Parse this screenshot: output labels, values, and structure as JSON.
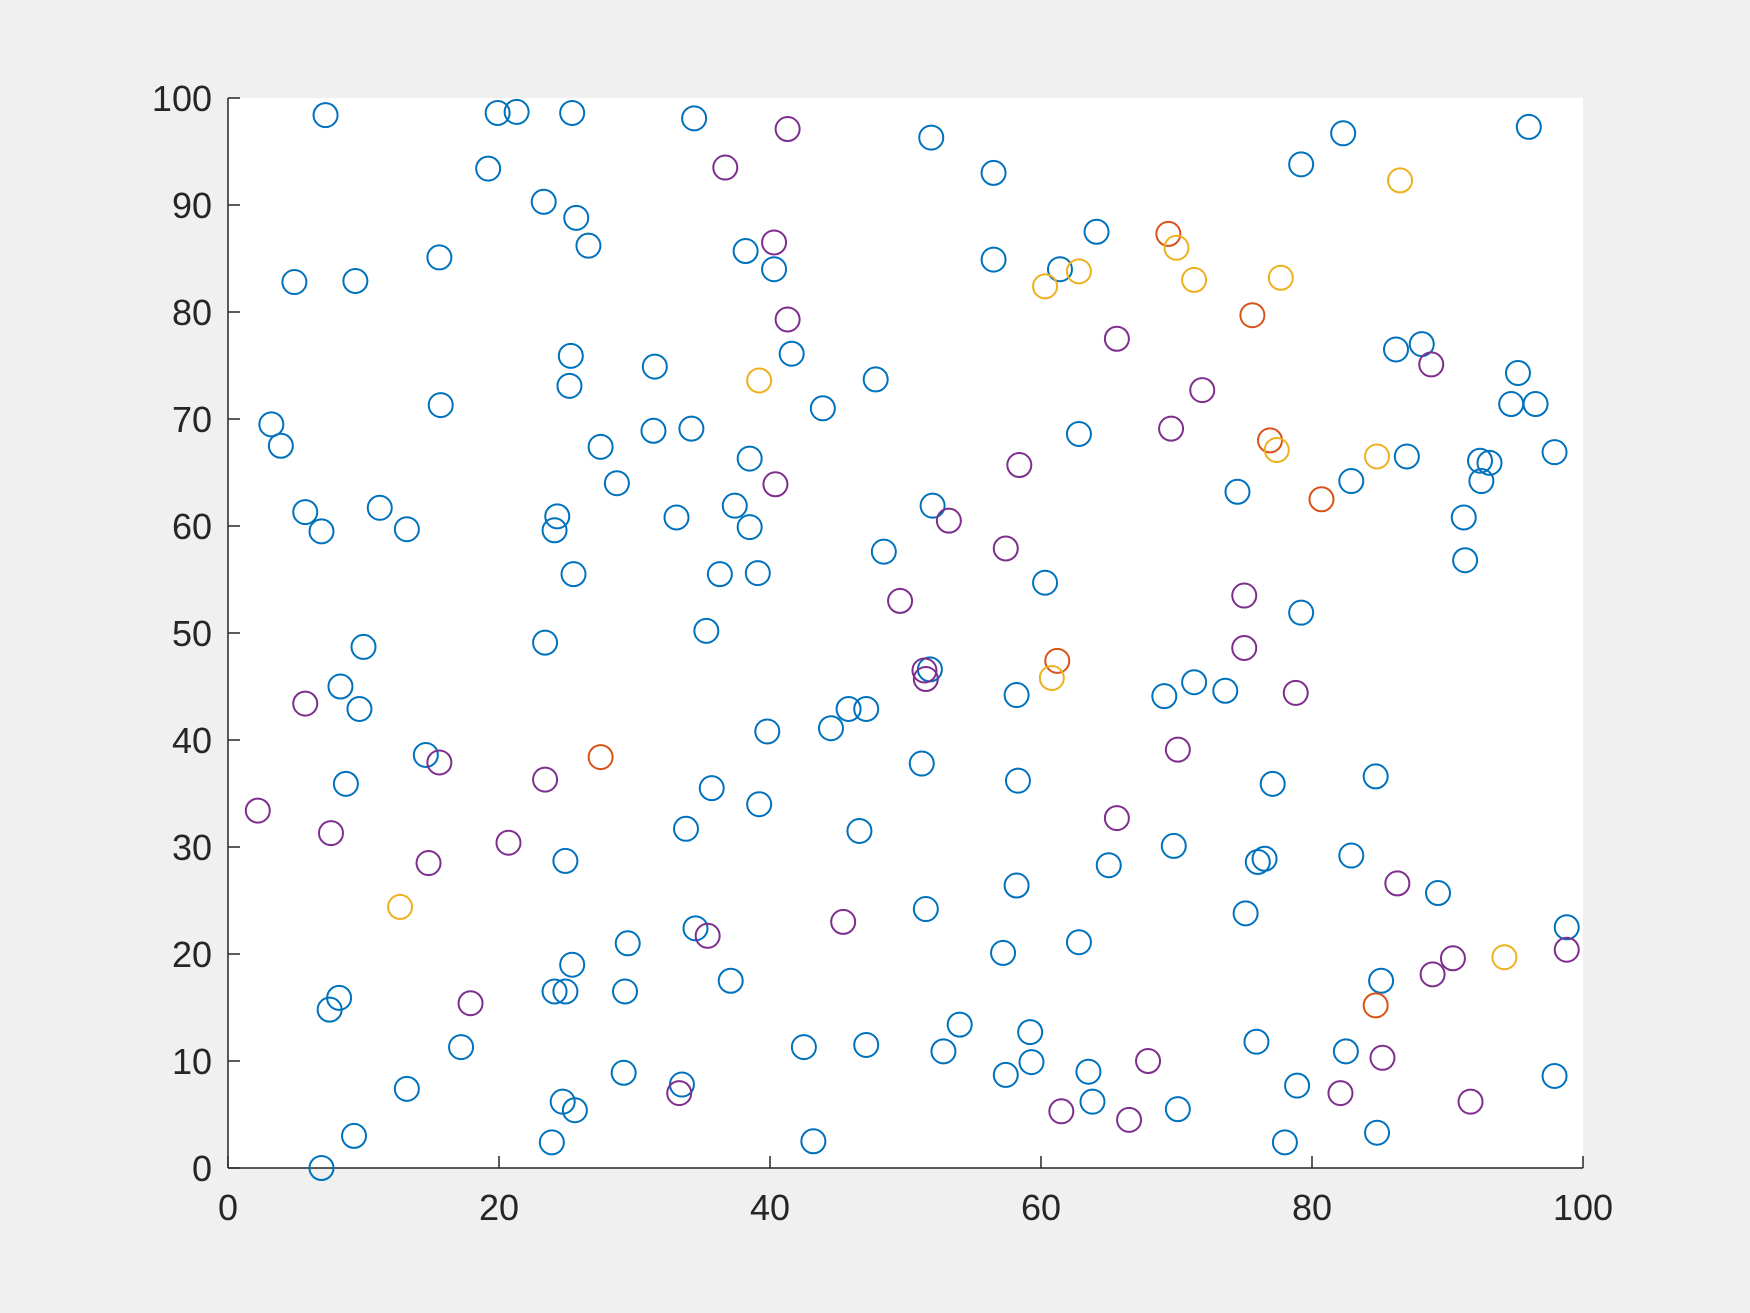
{
  "chart_data": {
    "type": "scatter",
    "xlim": [
      0,
      100
    ],
    "ylim": [
      0,
      100
    ],
    "xticks": [
      0,
      20,
      40,
      60,
      80,
      100
    ],
    "yticks": [
      0,
      10,
      20,
      30,
      40,
      50,
      60,
      70,
      80,
      90,
      100
    ],
    "series": [
      {
        "color": "#0072BD",
        "x": [
          7.2,
          19.9,
          21.3,
          25.4,
          34.4,
          51.9,
          82.3,
          96.0,
          19.2,
          56.5,
          79.2,
          23.3,
          25.7,
          26.6,
          38.2,
          64.1,
          15.6,
          40.3,
          56.5,
          61.4,
          4.9,
          9.4,
          25.3,
          25.2,
          31.5,
          41.6,
          47.8,
          43.9,
          15.7,
          3.2,
          3.9,
          31.4,
          34.2,
          27.5,
          62.8,
          38.5,
          28.7,
          5.7,
          6.9,
          11.2,
          13.2,
          24.3,
          24.1,
          33.1,
          37.4,
          38.5,
          52.0,
          48.4,
          36.3,
          39.1,
          25.5,
          60.3,
          35.3,
          10.0,
          23.4,
          8.3,
          9.7,
          51.8,
          58.2,
          45.8,
          47.1,
          44.5,
          39.8,
          14.6,
          8.7,
          35.7,
          39.2,
          51.2,
          58.3,
          33.8,
          46.6,
          24.9,
          58.2,
          51.5,
          34.5,
          29.5,
          25.4,
          37.1,
          24.1,
          24.9,
          29.3,
          8.2,
          7.5,
          57.2,
          62.8,
          54.0,
          59.2,
          17.2,
          42.5,
          47.1,
          52.8,
          57.4,
          59.3,
          63.5,
          63.8,
          13.2,
          29.2,
          33.5,
          24.7,
          25.6,
          9.3,
          23.9,
          43.2,
          6.9,
          70.1,
          78.0,
          84.8,
          78.9,
          82.5,
          75.9,
          97.9,
          85.1,
          98.8,
          89.3,
          82.9,
          75.1,
          76.0,
          76.5,
          65.0,
          69.8,
          77.1,
          84.7,
          69.1,
          71.3,
          73.6,
          79.2,
          74.5,
          82.9,
          87.0,
          86.2,
          88.1,
          95.2,
          94.7,
          96.5,
          97.9,
          92.4,
          93.1,
          92.5,
          91.2,
          91.3
        ],
        "values": [
          98.4,
          98.6,
          98.7,
          98.6,
          98.1,
          96.3,
          96.7,
          97.3,
          93.4,
          93.0,
          93.8,
          90.3,
          88.8,
          86.2,
          85.7,
          87.5,
          85.1,
          84.0,
          84.9,
          84.0,
          82.8,
          82.9,
          75.9,
          73.1,
          74.9,
          76.1,
          73.7,
          71.0,
          71.3,
          69.5,
          67.5,
          68.9,
          69.1,
          67.4,
          68.6,
          66.3,
          64.0,
          61.3,
          59.5,
          61.7,
          59.7,
          60.9,
          59.6,
          60.8,
          61.9,
          59.9,
          61.9,
          57.6,
          55.5,
          55.6,
          55.5,
          54.7,
          50.2,
          48.7,
          49.1,
          45.0,
          42.9,
          46.6,
          44.2,
          42.9,
          42.9,
          41.1,
          40.8,
          38.6,
          35.9,
          35.5,
          34.0,
          37.8,
          36.2,
          31.7,
          31.5,
          28.7,
          26.4,
          24.2,
          22.4,
          21.0,
          19.0,
          17.5,
          16.5,
          16.5,
          16.5,
          15.9,
          14.8,
          20.1,
          21.1,
          13.4,
          12.7,
          11.3,
          11.3,
          11.5,
          10.9,
          8.7,
          9.9,
          9.0,
          6.2,
          7.4,
          8.9,
          7.8,
          6.2,
          5.4,
          3.0,
          2.4,
          2.5,
          0.0,
          5.5,
          2.4,
          3.3,
          7.7,
          10.9,
          11.8,
          8.6,
          17.5,
          22.5,
          25.7,
          29.2,
          23.8,
          28.6,
          28.9,
          28.3,
          30.1,
          35.9,
          36.6,
          44.1,
          45.4,
          44.6,
          51.9,
          63.2,
          64.2,
          66.5,
          76.5,
          77.0,
          74.3,
          71.4,
          71.4,
          66.9,
          66.1,
          65.9,
          64.2,
          60.8,
          56.8
        ]
      },
      {
        "color": "#7E2F8E",
        "x": [
          41.3,
          36.7,
          40.3,
          41.3,
          65.6,
          71.9,
          69.6,
          88.8,
          58.4,
          40.4,
          53.2,
          57.4,
          49.6,
          75.0,
          75.0,
          51.5,
          51.4,
          78.8,
          70.1,
          5.7,
          15.6,
          23.4,
          2.2,
          7.6,
          20.7,
          14.8,
          65.6,
          86.3,
          45.4,
          35.4,
          90.4,
          98.8,
          88.9,
          17.9,
          67.9,
          85.2,
          33.3,
          61.5,
          66.5,
          82.1,
          91.7
        ],
        "values": [
          97.1,
          93.5,
          86.5,
          79.3,
          77.5,
          72.7,
          69.1,
          75.1,
          65.7,
          63.9,
          60.5,
          57.9,
          53.0,
          53.5,
          48.6,
          45.7,
          46.5,
          44.4,
          39.1,
          43.4,
          37.9,
          36.3,
          33.4,
          31.3,
          30.4,
          28.5,
          32.7,
          26.6,
          23.0,
          21.7,
          19.6,
          20.4,
          18.1,
          15.4,
          10.0,
          10.3,
          7.0,
          5.3,
          4.5,
          7.0,
          6.2
        ]
      },
      {
        "color": "#D95319",
        "x": [
          69.4,
          75.6,
          76.9,
          80.7,
          61.2,
          27.5,
          84.7
        ],
        "values": [
          87.3,
          79.7,
          68.0,
          62.5,
          47.4,
          38.4,
          15.2
        ]
      },
      {
        "color": "#EDB120",
        "x": [
          86.5,
          70.0,
          71.3,
          77.7,
          60.3,
          62.8,
          39.2,
          77.4,
          84.8,
          60.8,
          12.7,
          94.2
        ],
        "values": [
          92.3,
          86.0,
          83.0,
          83.2,
          82.4,
          83.8,
          73.6,
          67.1,
          66.5,
          45.8,
          24.4,
          19.7
        ]
      }
    ]
  }
}
